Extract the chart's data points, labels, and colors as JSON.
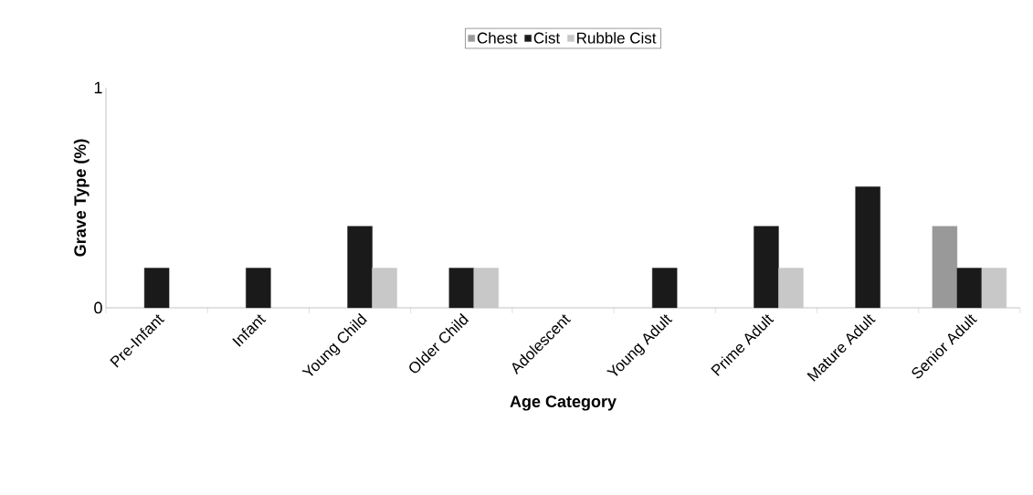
{
  "chart_data": {
    "type": "bar",
    "xlabel": "Age Category",
    "ylabel": "Grave Type (%)",
    "categories": [
      "Pre-Infant",
      "Infant",
      "Young Child",
      "Older Child",
      "Adolescent",
      "Young Adult",
      "Prime Adult",
      "Mature Adult",
      "Senior Adult"
    ],
    "series": [
      {
        "name": "Chest",
        "color": "#999999",
        "values": [
          null,
          null,
          null,
          null,
          null,
          null,
          null,
          null,
          0.37
        ]
      },
      {
        "name": "Cist",
        "color": "#1a1a1a",
        "values": [
          0.18,
          0.18,
          0.37,
          0.18,
          null,
          0.18,
          0.37,
          0.55,
          0.18
        ]
      },
      {
        "name": "Rubble Cist",
        "color": "#c8c8c8",
        "values": [
          null,
          null,
          0.18,
          0.18,
          null,
          null,
          0.18,
          null,
          0.18
        ]
      }
    ],
    "ylim": [
      0,
      1
    ],
    "yticks": [
      0,
      1
    ],
    "grid": false,
    "legend": "top"
  }
}
